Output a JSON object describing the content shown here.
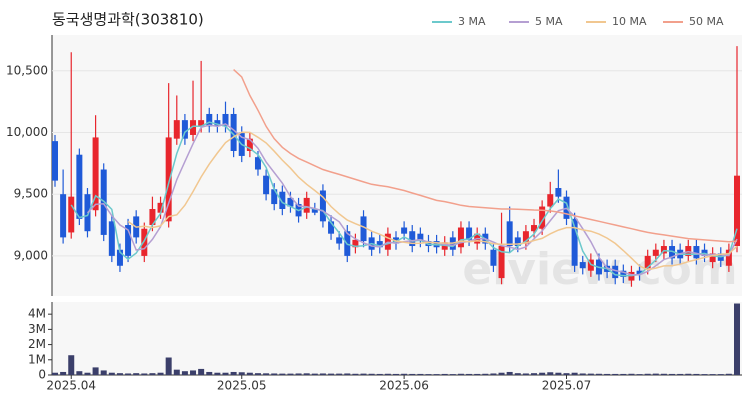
{
  "chart_data": {
    "type": "candlestick",
    "title": "동국생명과학(303810)",
    "watermark": "elview.com",
    "categories": [
      null,
      null,
      "2025.04",
      null,
      null,
      null,
      null,
      null,
      null,
      null,
      null,
      null,
      null,
      null,
      null,
      null,
      null,
      null,
      null,
      null,
      null,
      null,
      null,
      "2025.05",
      null,
      null,
      null,
      null,
      null,
      null,
      null,
      null,
      null,
      null,
      null,
      null,
      null,
      null,
      null,
      null,
      null,
      null,
      null,
      "2025.06",
      null,
      null,
      null,
      null,
      null,
      null,
      null,
      null,
      null,
      null,
      null,
      null,
      null,
      null,
      null,
      null,
      null,
      null,
      null,
      "2025.07",
      null,
      null,
      null,
      null,
      null,
      null,
      null,
      null,
      null,
      null,
      null,
      null,
      null,
      null,
      null,
      null,
      null,
      null,
      null,
      null,
      null
    ],
    "open": [
      9930,
      9500,
      9190,
      9820,
      9500,
      9370,
      9700,
      9280,
      9050,
      9250,
      9320,
      9000,
      9250,
      9350,
      9280,
      9950,
      10100,
      9980,
      10050,
      10150,
      10100,
      10150,
      10150,
      10000,
      9850,
      9800,
      9650,
      9540,
      9520,
      9470,
      9420,
      9350,
      9380,
      9530,
      9280,
      9150,
      9200,
      9070,
      9320,
      9150,
      9120,
      9050,
      9150,
      9230,
      9200,
      9180,
      9120,
      9120,
      9050,
      9150,
      9070,
      9230,
      9100,
      9180,
      9050,
      8820,
      9280,
      9150,
      9100,
      9200,
      9220,
      9400,
      9550,
      9480,
      9300,
      8950,
      8880,
      8970,
      8920,
      8920,
      8880,
      8800,
      8880,
      8900,
      9000,
      9020,
      9080,
      9050,
      9000,
      9080,
      9050,
      8950,
      9020,
      8920,
      9080
    ],
    "high": [
      9980,
      9700,
      10650,
      9870,
      9550,
      10140,
      9750,
      9330,
      9100,
      9300,
      9370,
      9270,
      9480,
      9480,
      10400,
      10300,
      10150,
      10420,
      10580,
      10200,
      10150,
      10250,
      10200,
      10050,
      10000,
      9850,
      9700,
      9590,
      9570,
      9520,
      9470,
      9520,
      9430,
      9580,
      9330,
      9200,
      9250,
      9180,
      9370,
      9200,
      9170,
      9230,
      9200,
      9280,
      9250,
      9230,
      9170,
      9170,
      9160,
      9200,
      9280,
      9280,
      9230,
      9230,
      9100,
      9350,
      9400,
      9200,
      9250,
      9300,
      9450,
      9600,
      9700,
      9530,
      9350,
      9000,
      9020,
      9020,
      8970,
      8970,
      8930,
      8920,
      8930,
      9050,
      9100,
      9130,
      9130,
      9100,
      9130,
      9130,
      9100,
      9070,
      9070,
      9100,
      10700
    ],
    "low": [
      9560,
      9100,
      9140,
      9250,
      9150,
      9320,
      9120,
      8950,
      8870,
      8950,
      9100,
      8950,
      9200,
      9300,
      9230,
      9900,
      9900,
      9930,
      10000,
      10000,
      10000,
      10000,
      9800,
      9760,
      9800,
      9650,
      9450,
      9370,
      9330,
      9350,
      9270,
      9300,
      9330,
      9230,
      9130,
      9050,
      8950,
      9020,
      9070,
      9000,
      9020,
      9000,
      9050,
      9130,
      9030,
      9070,
      9030,
      9020,
      9000,
      9000,
      9020,
      9080,
      9050,
      9050,
      8870,
      8770,
      9030,
      9030,
      9050,
      9150,
      9170,
      9350,
      9430,
      9250,
      8870,
      8850,
      8830,
      8800,
      8820,
      8770,
      8780,
      8750,
      8800,
      8850,
      8950,
      8970,
      8930,
      8930,
      8950,
      8930,
      8950,
      8900,
      8910,
      8870,
      9030
    ],
    "close": [
      9610,
      9150,
      9480,
      9300,
      9200,
      9960,
      9170,
      9000,
      8920,
      9000,
      9150,
      9220,
      9380,
      9430,
      9960,
      10100,
      9950,
      10100,
      10100,
      10050,
      10050,
      10050,
      9850,
      9810,
      9950,
      9700,
      9500,
      9420,
      9380,
      9400,
      9320,
      9470,
      9350,
      9280,
      9180,
      9100,
      9000,
      9130,
      9120,
      9050,
      9070,
      9180,
      9100,
      9180,
      9080,
      9120,
      9080,
      9070,
      9110,
      9050,
      9230,
      9130,
      9180,
      9100,
      8920,
      9080,
      9080,
      9080,
      9200,
      9250,
      9400,
      9500,
      9480,
      9300,
      8920,
      8900,
      8970,
      8850,
      8870,
      8820,
      8830,
      8870,
      8850,
      9000,
      9050,
      9080,
      8980,
      8980,
      9080,
      8980,
      9000,
      9020,
      8960,
      9050,
      9650
    ],
    "up_color": "#e8262d",
    "down_color": "#1f5ad8",
    "series": [
      {
        "name": "3 MA",
        "color": "#6cc9cc",
        "values": [
          null,
          null,
          9413,
          9310,
          9327,
          9487,
          9443,
          9377,
          9030,
          8973,
          9023,
          9123,
          9250,
          9343,
          9590,
          9830,
          10003,
          10050,
          10050,
          10083,
          10067,
          10050,
          9983,
          9903,
          9870,
          9820,
          9717,
          9540,
          9433,
          9400,
          9367,
          9397,
          9380,
          9367,
          9270,
          9187,
          9093,
          9077,
          9083,
          9100,
          9080,
          9100,
          9117,
          9153,
          9120,
          9127,
          9093,
          9090,
          9087,
          9077,
          9130,
          9137,
          9180,
          9137,
          9067,
          9033,
          9027,
          9080,
          9120,
          9177,
          9283,
          9383,
          9460,
          9427,
          9233,
          9040,
          8930,
          8907,
          8897,
          8847,
          8840,
          8840,
          8850,
          8907,
          8967,
          9043,
          9037,
          9013,
          9013,
          9013,
          9020,
          9000,
          8993,
          9010,
          9220
        ]
      },
      {
        "name": "5 MA",
        "color": "#b59fd2",
        "values": [
          null,
          null,
          null,
          null,
          9348,
          9418,
          9422,
          9326,
          9250,
          9210,
          9048,
          9058,
          9134,
          9236,
          9428,
          9618,
          9764,
          9908,
          10042,
          10060,
          10050,
          10070,
          10020,
          9962,
          9942,
          9872,
          9762,
          9676,
          9590,
          9480,
          9404,
          9398,
          9384,
          9364,
          9320,
          9276,
          9182,
          9138,
          9106,
          9080,
          9074,
          9110,
          9104,
          9116,
          9122,
          9132,
          9112,
          9106,
          9092,
          9086,
          9108,
          9118,
          9140,
          9138,
          9112,
          9082,
          9072,
          9052,
          9072,
          9138,
          9202,
          9286,
          9366,
          9386,
          9320,
          9220,
          9114,
          8988,
          8902,
          8882,
          8868,
          8848,
          8848,
          8874,
          8920,
          8970,
          8992,
          9018,
          9034,
          9020,
          9004,
          9012,
          9008,
          9002,
          9136
        ]
      },
      {
        "name": "10 MA",
        "color": "#f1c790",
        "values": [
          null,
          null,
          null,
          null,
          null,
          null,
          null,
          null,
          null,
          9279,
          9233,
          9240,
          9230,
          9243,
          9319,
          9333,
          9411,
          9521,
          9639,
          9744,
          9834,
          9917,
          9964,
          10002,
          10001,
          9961,
          9916,
          9848,
          9776,
          9711,
          9638,
          9580,
          9530,
          9477,
          9400,
          9340,
          9290,
          9261,
          9235,
          9200,
          9175,
          9146,
          9121,
          9111,
          9101,
          9103,
          9111,
          9105,
          9104,
          9104,
          9120,
          9115,
          9123,
          9115,
          9099,
          9095,
          9095,
          9096,
          9105,
          9125,
          9142,
          9179,
          9209,
          9229,
          9229,
          9211,
          9200,
          9177,
          9144,
          9101,
          9044,
          8981,
          8918,
          8888,
          8901,
          8919,
          8920,
          8933,
          8954,
          8970,
          8987,
          9002,
          9013,
          9018,
          9078
        ]
      },
      {
        "name": "50 MA",
        "color": "#f2a08c",
        "values": [
          null,
          null,
          null,
          null,
          null,
          null,
          null,
          null,
          null,
          null,
          null,
          null,
          null,
          null,
          null,
          null,
          null,
          null,
          null,
          null,
          null,
          null,
          10510,
          10450,
          10300,
          10180,
          10050,
          9950,
          9880,
          9830,
          9790,
          9760,
          9730,
          9700,
          9680,
          9660,
          9640,
          9620,
          9600,
          9580,
          9570,
          9560,
          9545,
          9530,
          9510,
          9490,
          9470,
          9450,
          9440,
          9425,
          9410,
          9400,
          9395,
          9390,
          9385,
          9380,
          9380,
          9378,
          9375,
          9372,
          9370,
          9365,
          9355,
          9340,
          9325,
          9310,
          9295,
          9280,
          9265,
          9250,
          9235,
          9220,
          9205,
          9190,
          9180,
          9170,
          9160,
          9150,
          9140,
          9135,
          9130,
          9125,
          9120,
          9115,
          9120
        ]
      }
    ],
    "ylim": [
      8675,
      10790
    ],
    "yticks": [
      {
        "value": 9000,
        "label": "9,000"
      },
      {
        "value": 9500,
        "label": "9,500"
      },
      {
        "value": 10000,
        "label": "10,000"
      },
      {
        "value": 10500,
        "label": "10,500"
      }
    ],
    "volume": {
      "color": "#3b3f6a",
      "values": [
        150000,
        200000,
        1300000,
        250000,
        150000,
        500000,
        300000,
        150000,
        120000,
        100000,
        120000,
        100000,
        120000,
        150000,
        1150000,
        350000,
        250000,
        300000,
        400000,
        200000,
        150000,
        150000,
        200000,
        180000,
        150000,
        120000,
        110000,
        100000,
        90000,
        90000,
        100000,
        110000,
        90000,
        100000,
        90000,
        90000,
        100000,
        80000,
        90000,
        80000,
        70000,
        80000,
        70000,
        80000,
        70000,
        70000,
        60000,
        60000,
        70000,
        60000,
        80000,
        70000,
        70000,
        80000,
        100000,
        150000,
        200000,
        120000,
        100000,
        120000,
        150000,
        180000,
        150000,
        120000,
        150000,
        100000,
        90000,
        80000,
        70000,
        70000,
        70000,
        80000,
        60000,
        80000,
        90000,
        80000,
        70000,
        70000,
        80000,
        70000,
        60000,
        60000,
        60000,
        80000,
        4700000
      ],
      "ylim": [
        0,
        4800000
      ],
      "yticks": [
        0,
        {
          "value": 1000000,
          "label": "1M"
        },
        {
          "value": 2000000,
          "label": "2M"
        },
        {
          "value": 3000000,
          "label": "3M"
        },
        {
          "value": 4000000,
          "label": "4M"
        }
      ]
    }
  }
}
